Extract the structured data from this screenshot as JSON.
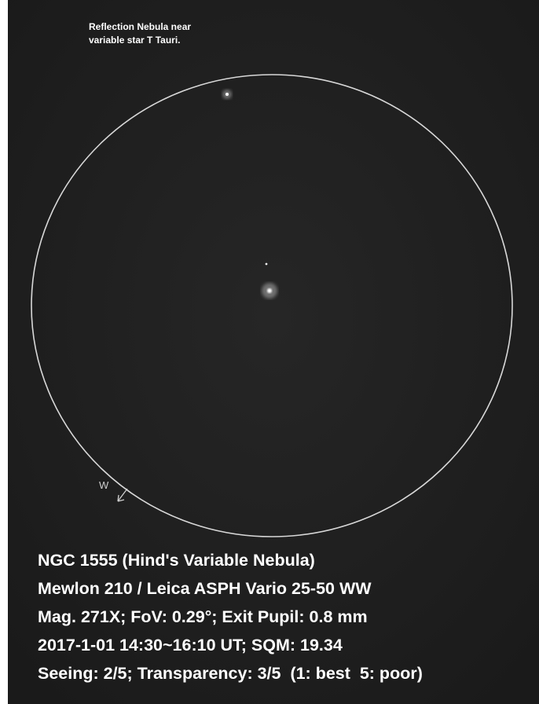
{
  "annotation": {
    "lines": [
      "Reflection Nebula near",
      "variable star T Tauri."
    ]
  },
  "compass": {
    "label": "W"
  },
  "caption": {
    "lines": [
      "NGC 1555 (Hind's Variable Nebula)",
      "Mewlon 210 / Leica ASPH Vario 25-50 WW",
      "Mag. 271X; FoV: 0.29°; Exit Pupil: 0.8 mm",
      "2017-1-01 14:30~16:10 UT; SQM: 19.34",
      "Seeing: 2/5; Transparency: 3/5  (1: best  5: poor)"
    ]
  }
}
